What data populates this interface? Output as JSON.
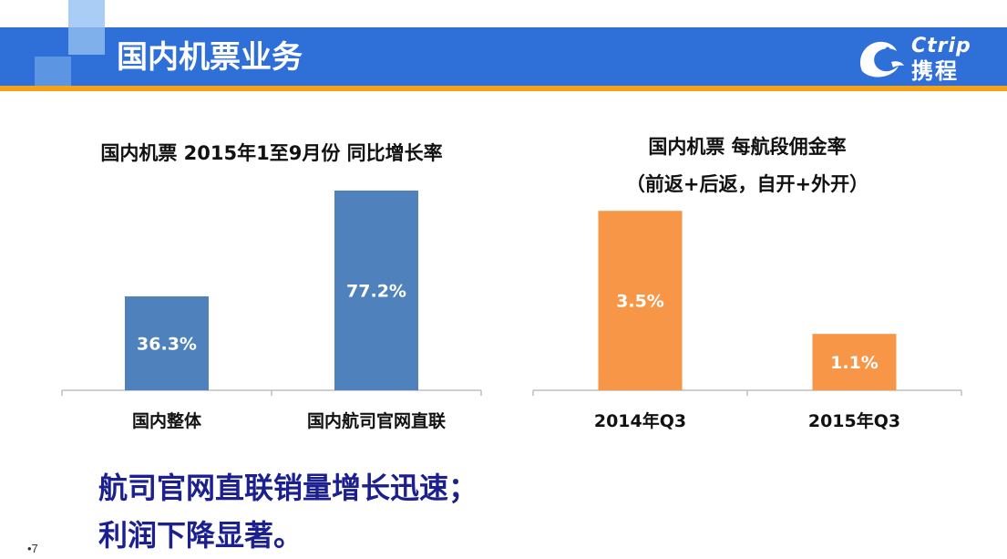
{
  "slide": {
    "title": "国内机票业务",
    "page_number": "•7",
    "colors": {
      "header_blue": "#2e6fd8",
      "accent_orange": "#f5a21b",
      "bar_blue": "#4f81bd",
      "bar_orange": "#f79646",
      "conclusion_navy": "#1b1f8f"
    }
  },
  "logo": {
    "brand_en": "Ctrip",
    "brand_cn": "携程",
    "icon": "dolphin-logo-icon"
  },
  "chart_data": [
    {
      "type": "bar",
      "title": "国内机票 2015年1至9月份 同比增长率",
      "categories": [
        "国内整体",
        "国内航司官网直联"
      ],
      "values": [
        36.3,
        77.2
      ],
      "data_labels": [
        "36.3%",
        "77.2%"
      ],
      "ylim": [
        0,
        80
      ],
      "color": "#4f81bd",
      "grid": false
    },
    {
      "type": "bar",
      "title_line1": "国内机票 每航段佣金率",
      "title_line2": "（前返+后返，自开+外开）",
      "categories": [
        "2014年Q3",
        "2015年Q3"
      ],
      "values": [
        3.5,
        1.1
      ],
      "data_labels": [
        "3.5%",
        "1.1%"
      ],
      "ylim": [
        0,
        3.7
      ],
      "color": "#f79646",
      "grid": false
    }
  ],
  "conclusion": {
    "line1": "航司官网直联销量增长迅速；",
    "line2": "利润下降显著。"
  }
}
